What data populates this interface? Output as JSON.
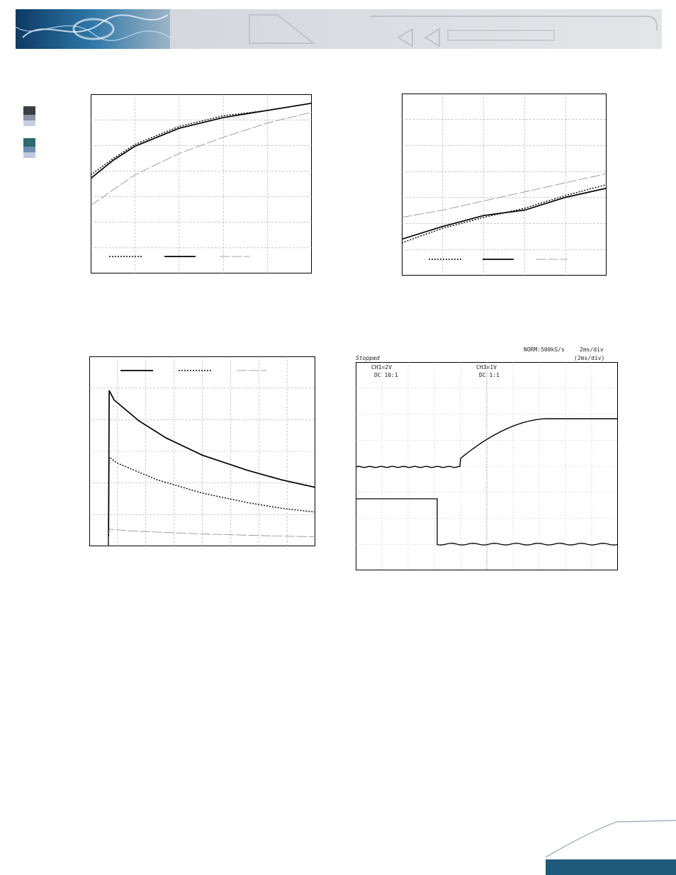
{
  "colors": {
    "brand_blue": "#1f5a7a",
    "header_gray": "#d7dadd",
    "swatch_dark": "#3a3f44",
    "swatch_teal": "#2b6a6e",
    "swatch_light": "#b9c3d6"
  },
  "scope": {
    "status": "Stopped",
    "rate": "NORM:500kS/s",
    "timebase": "2ms/div",
    "timebase_sub": "(2ms/div)",
    "ch1_scale": "CH1=2V",
    "ch1_coupling": "DC 10:1",
    "ch3_scale": "CH3=1V",
    "ch3_coupling": "DC 1:1"
  },
  "chart_data": [
    {
      "type": "line",
      "series": [
        {
          "style": "dotted",
          "values": [
            [
              0,
              0.55
            ],
            [
              0.1,
              0.64
            ],
            [
              0.2,
              0.72
            ],
            [
              0.4,
              0.82
            ],
            [
              0.6,
              0.88
            ],
            [
              0.8,
              0.91
            ],
            [
              1,
              0.95
            ]
          ]
        },
        {
          "style": "solid",
          "values": [
            [
              0,
              0.53
            ],
            [
              0.1,
              0.63
            ],
            [
              0.2,
              0.71
            ],
            [
              0.4,
              0.81
            ],
            [
              0.6,
              0.87
            ],
            [
              0.8,
              0.91
            ],
            [
              1,
              0.95
            ]
          ]
        },
        {
          "style": "dash-light",
          "values": [
            [
              0,
              0.38
            ],
            [
              0.2,
              0.55
            ],
            [
              0.4,
              0.67
            ],
            [
              0.6,
              0.76
            ],
            [
              0.8,
              0.84
            ],
            [
              1,
              0.9
            ]
          ]
        }
      ]
    },
    {
      "type": "line",
      "series": [
        {
          "style": "dotted",
          "values": [
            [
              0,
              0.18
            ],
            [
              0.2,
              0.26
            ],
            [
              0.4,
              0.32
            ],
            [
              0.6,
              0.37
            ],
            [
              0.8,
              0.44
            ],
            [
              1,
              0.5
            ]
          ]
        },
        {
          "style": "solid",
          "values": [
            [
              0,
              0.2
            ],
            [
              0.2,
              0.27
            ],
            [
              0.4,
              0.33
            ],
            [
              0.6,
              0.36
            ],
            [
              0.8,
              0.43
            ],
            [
              1,
              0.48
            ]
          ]
        },
        {
          "style": "dash-light",
          "values": [
            [
              0,
              0.32
            ],
            [
              0.2,
              0.36
            ],
            [
              0.4,
              0.41
            ],
            [
              0.6,
              0.46
            ],
            [
              0.8,
              0.51
            ],
            [
              1,
              0.56
            ]
          ]
        }
      ]
    },
    {
      "type": "line",
      "series": [
        {
          "style": "solid",
          "values": [
            [
              0,
              0
            ],
            [
              0.085,
              0
            ],
            [
              0.088,
              0.82
            ],
            [
              0.11,
              0.77
            ],
            [
              0.22,
              0.66
            ],
            [
              0.34,
              0.57
            ],
            [
              0.5,
              0.48
            ],
            [
              0.7,
              0.4
            ],
            [
              0.85,
              0.35
            ],
            [
              1,
              0.31
            ]
          ]
        },
        {
          "style": "dotted",
          "values": [
            [
              0.085,
              0
            ],
            [
              0.088,
              0.47
            ],
            [
              0.12,
              0.44
            ],
            [
              0.3,
              0.35
            ],
            [
              0.5,
              0.28
            ],
            [
              0.7,
              0.23
            ],
            [
              0.85,
              0.2
            ],
            [
              1,
              0.18
            ]
          ]
        },
        {
          "style": "dash-light",
          "values": [
            [
              0.085,
              0
            ],
            [
              0.088,
              0.09
            ],
            [
              0.2,
              0.08
            ],
            [
              0.5,
              0.065
            ],
            [
              0.8,
              0.055
            ],
            [
              1,
              0.05
            ]
          ]
        }
      ]
    }
  ]
}
